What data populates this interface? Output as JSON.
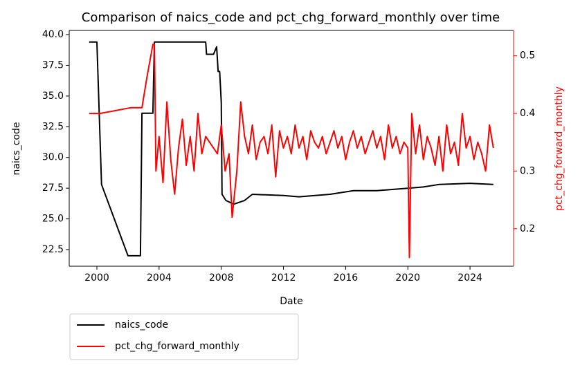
{
  "chart_data": {
    "type": "line",
    "title": "Comparison of naics_code and pct_chg_forward_monthly over time",
    "x_label": "Date",
    "y_label": "naics_code",
    "y2_label": "pct_chg_forward_monthly",
    "y2_color": "#ff0000",
    "xlim": [
      1998.22,
      2026.8
    ],
    "xticks": [
      2000,
      2004,
      2008,
      2012,
      2016,
      2020,
      2024
    ],
    "ylim": [
      21.15,
      40.34
    ],
    "yticks": [
      22.5,
      {
        "value": 25,
        "label": "25.0"
      },
      27.5,
      {
        "value": 30,
        "label": "30.0"
      },
      32.5,
      {
        "value": 35,
        "label": "35.0"
      },
      37.5,
      {
        "value": 40,
        "label": "40.0"
      }
    ],
    "y2lim": [
      0.135,
      0.544
    ],
    "y2ticks": [
      0.2,
      0.3,
      0.4,
      0.5
    ],
    "legend": "below-left",
    "series": [
      {
        "name": "naics_code",
        "color": "#000000",
        "x": [
          1999.5,
          2000.0,
          2000.3,
          2002.0,
          2002.8,
          2002.9,
          2003.6,
          2003.7,
          2007.0,
          2007.05,
          2007.5,
          2007.7,
          2007.8,
          2007.9,
          2008.0,
          2008.05,
          2008.3,
          2008.8,
          2009.5,
          2010.0,
          2012.0,
          2013.0,
          2015.0,
          2016.5,
          2018.0,
          2020.0,
          2021.0,
          2022.0,
          2024.0,
          2025.5
        ],
        "values": [
          39.4,
          39.4,
          27.8,
          22.0,
          22.0,
          33.6,
          33.6,
          39.4,
          39.4,
          38.4,
          38.4,
          39.0,
          37.0,
          37.0,
          34.5,
          27.0,
          26.5,
          26.2,
          26.5,
          27.0,
          26.9,
          26.8,
          27.0,
          27.3,
          27.3,
          27.5,
          27.6,
          27.8,
          27.9,
          27.8
        ]
      },
      {
        "name": "pct_chg_forward_monthly",
        "color": "#ff0000",
        "axis": "y2",
        "x": [
          1999.5,
          2000.2,
          2002.2,
          2002.9,
          2003.2,
          2003.6,
          2003.7,
          2003.8,
          2004.0,
          2004.25,
          2004.5,
          2004.75,
          2005.0,
          2005.25,
          2005.5,
          2005.75,
          2006.0,
          2006.25,
          2006.5,
          2006.75,
          2007.0,
          2007.25,
          2007.5,
          2007.75,
          2008.0,
          2008.25,
          2008.5,
          2008.7,
          2009.0,
          2009.25,
          2009.5,
          2009.75,
          2010.0,
          2010.25,
          2010.5,
          2010.75,
          2011.0,
          2011.25,
          2011.5,
          2011.75,
          2012.0,
          2012.25,
          2012.5,
          2012.75,
          2013.0,
          2013.25,
          2013.5,
          2013.75,
          2014.0,
          2014.25,
          2014.5,
          2014.75,
          2015.0,
          2015.25,
          2015.5,
          2015.75,
          2016.0,
          2016.25,
          2016.5,
          2016.75,
          2017.0,
          2017.25,
          2017.5,
          2017.75,
          2018.0,
          2018.25,
          2018.5,
          2018.75,
          2019.0,
          2019.25,
          2019.5,
          2019.75,
          2020.0,
          2020.1,
          2020.25,
          2020.5,
          2020.75,
          2021.0,
          2021.25,
          2021.5,
          2021.75,
          2022.0,
          2022.25,
          2022.5,
          2022.75,
          2023.0,
          2023.25,
          2023.5,
          2023.75,
          2024.0,
          2024.25,
          2024.5,
          2024.75,
          2025.0,
          2025.25,
          2025.5
        ],
        "values": [
          0.4,
          0.4,
          0.41,
          0.41,
          0.46,
          0.52,
          0.52,
          0.3,
          0.36,
          0.28,
          0.42,
          0.32,
          0.26,
          0.34,
          0.39,
          0.31,
          0.36,
          0.3,
          0.4,
          0.33,
          0.36,
          0.35,
          0.34,
          0.33,
          0.38,
          0.3,
          0.33,
          0.22,
          0.3,
          0.42,
          0.36,
          0.33,
          0.38,
          0.32,
          0.35,
          0.36,
          0.33,
          0.38,
          0.29,
          0.37,
          0.34,
          0.36,
          0.33,
          0.38,
          0.34,
          0.36,
          0.32,
          0.37,
          0.35,
          0.34,
          0.36,
          0.33,
          0.35,
          0.37,
          0.34,
          0.36,
          0.32,
          0.35,
          0.37,
          0.34,
          0.36,
          0.33,
          0.35,
          0.37,
          0.34,
          0.36,
          0.32,
          0.38,
          0.34,
          0.36,
          0.33,
          0.35,
          0.34,
          0.15,
          0.4,
          0.33,
          0.38,
          0.32,
          0.36,
          0.34,
          0.31,
          0.36,
          0.3,
          0.38,
          0.33,
          0.35,
          0.31,
          0.4,
          0.34,
          0.36,
          0.32,
          0.35,
          0.33,
          0.3,
          0.38,
          0.34
        ]
      }
    ]
  }
}
